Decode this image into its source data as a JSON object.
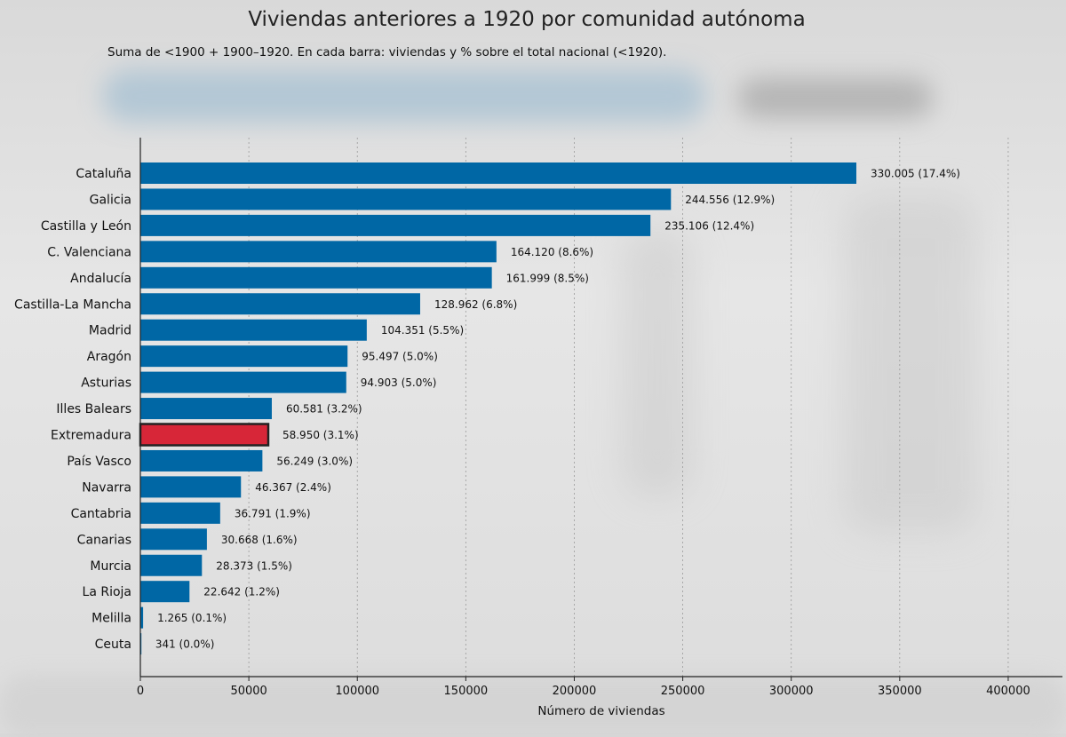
{
  "title": "Viviendas anteriores a 1920 por comunidad autónoma",
  "subtitle": "Suma de <1900 + 1900–1920. En cada barra: viviendas y % sobre el total nacional (<1920).",
  "colors": {
    "bar": "#0067a5",
    "highlight": "#d72638",
    "highlight_border": "#222222"
  },
  "chart_data": {
    "type": "bar",
    "orientation": "horizontal",
    "title": "Viviendas anteriores a 1920 por comunidad autónoma",
    "subtitle": "Suma de <1900 + 1900–1920. En cada barra: viviendas y % sobre el total nacional (<1920).",
    "xlabel": "Número de viviendas",
    "ylabel": "",
    "xlim": [
      0,
      425000
    ],
    "xticks": [
      0,
      50000,
      100000,
      150000,
      200000,
      250000,
      300000,
      350000,
      400000
    ],
    "xtick_labels": [
      "0",
      "50000",
      "100000",
      "150000",
      "200000",
      "250000",
      "300000",
      "350000",
      "400000"
    ],
    "grid": "vertical dashed",
    "highlighted": "Extremadura",
    "categories": [
      "Cataluña",
      "Galicia",
      "Castilla y León",
      "C. Valenciana",
      "Andalucía",
      "Castilla-La Mancha",
      "Madrid",
      "Aragón",
      "Asturias",
      "Illes Balears",
      "Extremadura",
      "País Vasco",
      "Navarra",
      "Cantabria",
      "Canarias",
      "Murcia",
      "La Rioja",
      "Melilla",
      "Ceuta"
    ],
    "values": [
      330005,
      244556,
      235106,
      164120,
      161999,
      128962,
      104351,
      95497,
      94903,
      60581,
      58950,
      56249,
      46367,
      36791,
      30668,
      28373,
      22642,
      1265,
      341
    ],
    "data_labels": [
      "330.005  (17.4%)",
      "244.556  (12.9%)",
      "235.106  (12.4%)",
      "164.120  (8.6%)",
      "161.999  (8.5%)",
      "128.962  (6.8%)",
      "104.351  (5.5%)",
      "95.497  (5.0%)",
      "94.903  (5.0%)",
      "60.581  (3.2%)",
      "58.950  (3.1%)",
      "56.249  (3.0%)",
      "46.367  (2.4%)",
      "36.791  (1.9%)",
      "30.668  (1.6%)",
      "28.373  (1.5%)",
      "22.642  (1.2%)",
      "1.265  (0.1%)",
      "341  (0.0%)"
    ]
  }
}
